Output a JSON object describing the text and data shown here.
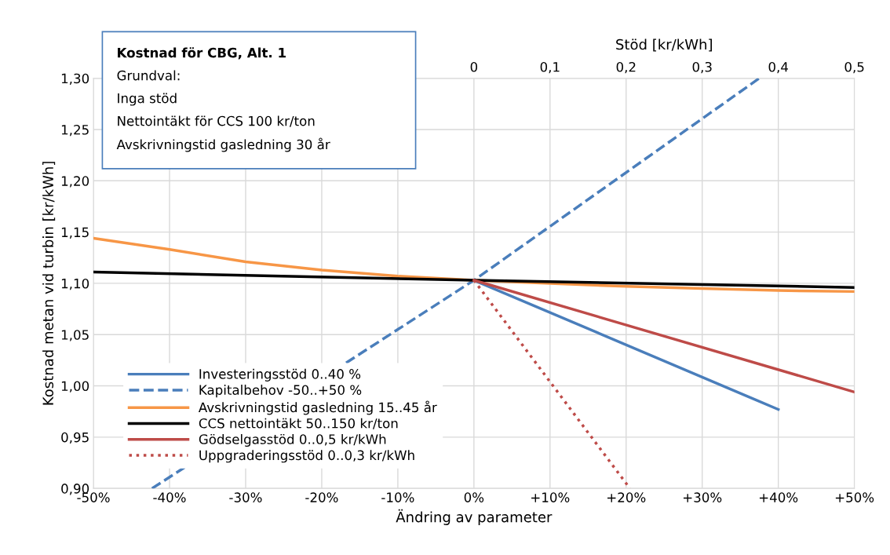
{
  "chart_data": {
    "type": "line",
    "xlabel": "Ändring av parameter",
    "ylabel": "Kostnad metan vid turbin [kr/kWh]",
    "x2label": "Stöd [kr/kWh]",
    "annotations": [
      "Kostnad för CBG, Alt. 1",
      "Grundval:",
      "Inga stöd",
      "Nettointäkt för CCS 100 kr/ton",
      "Avskrivningstid gasledning 30 år"
    ],
    "xlim": [
      -50,
      50
    ],
    "xticks": [
      {
        "value": -50,
        "label": "-50%"
      },
      {
        "value": -40,
        "label": "-40%"
      },
      {
        "value": -30,
        "label": "-30%"
      },
      {
        "value": -20,
        "label": "-20%"
      },
      {
        "value": -10,
        "label": "-10%"
      },
      {
        "value": 0,
        "label": "0%"
      },
      {
        "value": 10,
        "label": "+10%"
      },
      {
        "value": 20,
        "label": "+20%"
      },
      {
        "value": 30,
        "label": "+30%"
      },
      {
        "value": 40,
        "label": "+40%"
      },
      {
        "value": 50,
        "label": "+50%"
      }
    ],
    "x2lim": [
      -0.5,
      0.5
    ],
    "x2ticks": [
      0,
      {
        "value": 0.1,
        "label": "0,1"
      },
      {
        "value": 0.2,
        "label": "0,2"
      },
      {
        "value": 0.3,
        "label": "0,3"
      },
      {
        "value": 0.4,
        "label": "0,4"
      },
      {
        "value": 0.5,
        "label": "0,5"
      }
    ],
    "ylim": [
      0.9,
      1.3
    ],
    "yticks": [
      {
        "value": 0.9,
        "label": "0,90"
      },
      {
        "value": 0.95,
        "label": "0,95"
      },
      {
        "value": 1.0,
        "label": "1,00"
      },
      {
        "value": 1.05,
        "label": "1,05"
      },
      {
        "value": 1.1,
        "label": "1,10"
      },
      {
        "value": 1.15,
        "label": "1,15"
      },
      {
        "value": 1.2,
        "label": "1,20"
      },
      {
        "value": 1.25,
        "label": "1,25"
      },
      {
        "value": 1.3,
        "label": "1,30"
      }
    ],
    "grid": true,
    "legend": "bottom left",
    "marker": "none",
    "series": [
      {
        "name": "Investeringsstöd 0..40 %",
        "color": "#4a7ebb",
        "line_style": "solid",
        "x": [
          0,
          40
        ],
        "values": [
          1.103,
          0.977
        ]
      },
      {
        "name": "Kapitalbehov -50..+50 %",
        "color": "#4a7ebb",
        "line_style": "dashed",
        "x": [
          -42.3,
          0,
          37.5
        ],
        "values": [
          0.9,
          1.103,
          1.3
        ]
      },
      {
        "name": "Avskrivningstid gasledning 15..45 år",
        "color": "#f79646",
        "line_style": "solid",
        "x": [
          -50,
          -40,
          -30,
          -20,
          -10,
          0,
          10,
          20,
          30,
          40,
          50
        ],
        "values": [
          1.144,
          1.133,
          1.121,
          1.113,
          1.107,
          1.103,
          1.1,
          1.097,
          1.095,
          1.093,
          1.092
        ]
      },
      {
        "name": "CCS nettointäkt 50..150 kr/ton",
        "color": "#000000",
        "line_style": "solid",
        "x": [
          -50,
          0,
          50
        ],
        "values": [
          1.111,
          1.103,
          1.096
        ]
      },
      {
        "name": "Gödselgasstöd 0..0,5 kr/kWh",
        "color": "#be4b48",
        "line_style": "solid",
        "x": [
          0,
          50
        ],
        "values": [
          1.103,
          0.994
        ]
      },
      {
        "name": "Uppgraderingsstöd 0..0,3 kr/kWh",
        "color": "#be4b48",
        "line_style": "dotted",
        "x": [
          0,
          20.5
        ],
        "values": [
          1.103,
          0.9
        ]
      }
    ]
  }
}
